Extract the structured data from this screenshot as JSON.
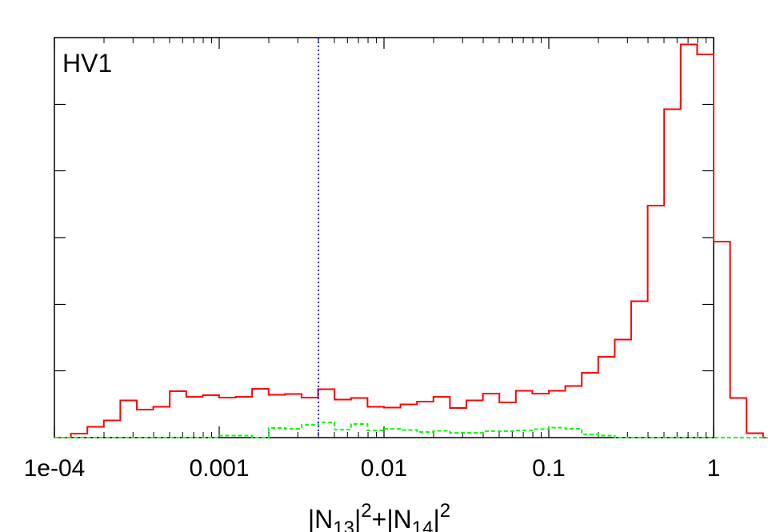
{
  "chart_data": {
    "type": "step-histogram",
    "panel_label": "HV1",
    "xlabel": "|N13|²+|N14|²",
    "xscale": "log",
    "xlim": [
      0.0001,
      1
    ],
    "ylim": [
      0,
      1
    ],
    "x_tick_labels": [
      "1e-04",
      "0.001",
      "0.01",
      "0.1",
      "1"
    ],
    "x_tick_values": [
      0.0001,
      0.001,
      0.01,
      0.1,
      1
    ],
    "y_major_ticks": [
      0.167,
      0.333,
      0.5,
      0.667,
      0.833
    ],
    "y_tick_labels_shown": false,
    "bins_per_decade": 10,
    "vline": {
      "x": 0.004,
      "color": "#0000ff",
      "style": "dotted"
    },
    "series": [
      {
        "color": "#ff0000",
        "style": "solid",
        "bin_start": 0.0001,
        "values": [
          0.0,
          0.01,
          0.027,
          0.043,
          0.093,
          0.07,
          0.077,
          0.116,
          0.102,
          0.106,
          0.1,
          0.102,
          0.122,
          0.107,
          0.109,
          0.1,
          0.121,
          0.095,
          0.099,
          0.077,
          0.075,
          0.083,
          0.09,
          0.102,
          0.074,
          0.093,
          0.11,
          0.088,
          0.117,
          0.11,
          0.117,
          0.129,
          0.162,
          0.202,
          0.245,
          0.341,
          0.58,
          0.821,
          0.983,
          0.958,
          0.49,
          0.099,
          0.011,
          0.0
        ]
      },
      {
        "color": "#00ff00",
        "style": "dashed",
        "bin_start": 0.0001,
        "values": [
          0,
          0,
          0,
          0,
          0,
          0,
          0,
          0,
          0,
          0,
          0.005,
          0.005,
          0,
          0.024,
          0.022,
          0.032,
          0.038,
          0.02,
          0.034,
          0.018,
          0.022,
          0.019,
          0.014,
          0.017,
          0.012,
          0.012,
          0.016,
          0.016,
          0.018,
          0.021,
          0.025,
          0.022,
          0.008,
          0.005,
          0,
          0,
          0,
          0,
          0,
          0,
          0,
          0,
          0,
          0
        ]
      }
    ]
  }
}
